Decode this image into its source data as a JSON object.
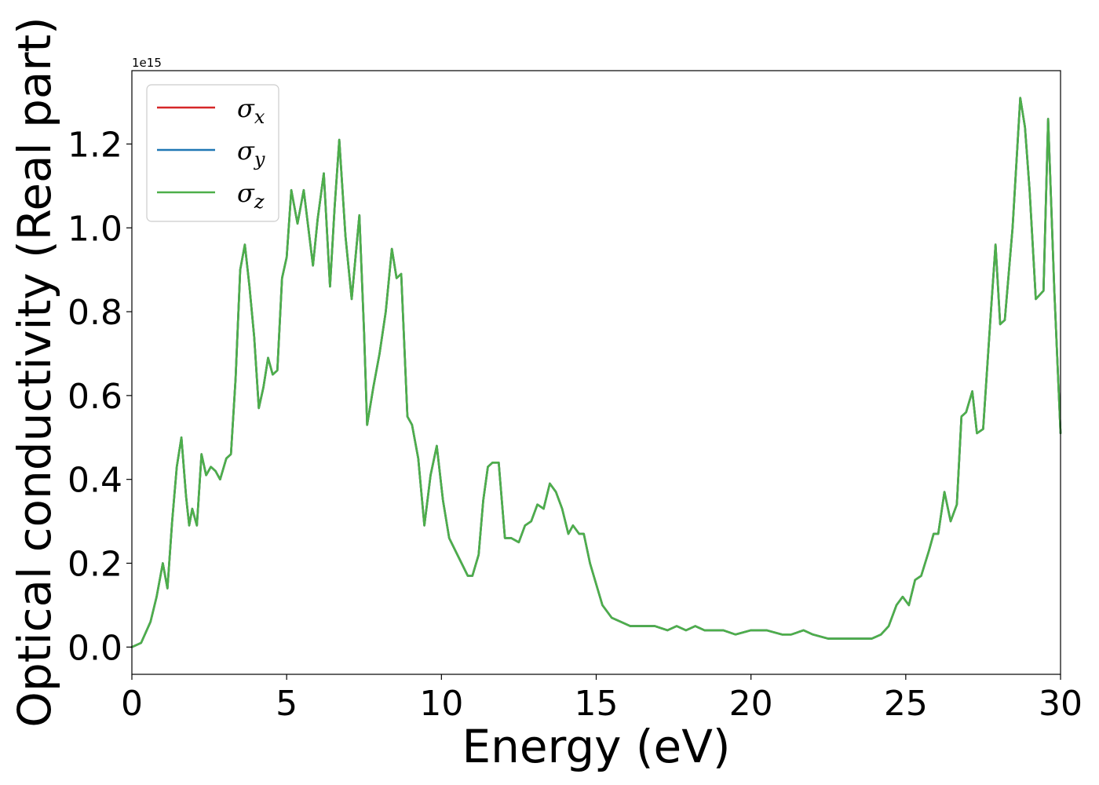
{
  "chart_data": {
    "type": "line",
    "xlabel": "Energy (eV)",
    "ylabel": "Optical conductivity (Real part)",
    "y_offset_label": "1e15",
    "xlim": [
      0,
      30
    ],
    "ylim": [
      -0.065,
      1.375
    ],
    "y_multiplier": 1000000000000000.0,
    "x_ticks": [
      0,
      5,
      10,
      15,
      20,
      25,
      30
    ],
    "x_tick_labels": [
      "0",
      "5",
      "10",
      "15",
      "20",
      "25",
      "30"
    ],
    "y_ticks": [
      0.0,
      0.2,
      0.4,
      0.6,
      0.8,
      1.0,
      1.2
    ],
    "y_tick_labels": [
      "0.0",
      "0.2",
      "0.4",
      "0.6",
      "0.8",
      "1.0",
      "1.2"
    ],
    "grid": false,
    "legend_position": "top-left",
    "series": [
      {
        "name": "σx",
        "symbol": "σ",
        "subscript": "x",
        "color": "#d62728"
      },
      {
        "name": "σy",
        "symbol": "σ",
        "subscript": "y",
        "color": "#1f77b4"
      },
      {
        "name": "σz",
        "symbol": "σ",
        "subscript": "z",
        "color": "#4daf4a"
      }
    ],
    "x": [
      0,
      0.3,
      0.6,
      0.8,
      1.0,
      1.15,
      1.3,
      1.45,
      1.6,
      1.75,
      1.85,
      1.95,
      2.1,
      2.25,
      2.4,
      2.55,
      2.7,
      2.85,
      3.05,
      3.2,
      3.35,
      3.5,
      3.65,
      3.8,
      3.95,
      4.1,
      4.25,
      4.4,
      4.55,
      4.7,
      4.85,
      5.0,
      5.15,
      5.35,
      5.55,
      5.7,
      5.85,
      6.0,
      6.2,
      6.4,
      6.55,
      6.7,
      6.9,
      7.1,
      7.35,
      7.5,
      7.6,
      7.8,
      8.0,
      8.2,
      8.4,
      8.55,
      8.7,
      8.9,
      9.05,
      9.25,
      9.45,
      9.65,
      9.85,
      10.05,
      10.25,
      10.45,
      10.65,
      10.85,
      11.0,
      11.2,
      11.35,
      11.5,
      11.65,
      11.85,
      12.05,
      12.25,
      12.5,
      12.7,
      12.9,
      13.1,
      13.3,
      13.5,
      13.7,
      13.9,
      14.1,
      14.25,
      14.45,
      14.6,
      14.8,
      15.0,
      15.2,
      15.5,
      15.8,
      16.1,
      16.5,
      16.9,
      17.3,
      17.6,
      17.9,
      18.2,
      18.5,
      18.8,
      19.1,
      19.5,
      20.0,
      20.5,
      21.0,
      21.3,
      21.7,
      22.0,
      22.5,
      23.0,
      23.5,
      23.9,
      24.2,
      24.45,
      24.7,
      24.9,
      25.1,
      25.3,
      25.5,
      25.75,
      25.9,
      26.05,
      26.25,
      26.45,
      26.65,
      26.8,
      26.95,
      27.15,
      27.3,
      27.5,
      27.75,
      27.9,
      28.05,
      28.2,
      28.45,
      28.7,
      28.85,
      29.0,
      29.2,
      29.45,
      29.6,
      29.8,
      30.0
    ],
    "y": [
      0.0,
      0.01,
      0.06,
      0.12,
      0.2,
      0.14,
      0.3,
      0.43,
      0.5,
      0.36,
      0.29,
      0.33,
      0.29,
      0.46,
      0.41,
      0.43,
      0.42,
      0.4,
      0.45,
      0.46,
      0.64,
      0.9,
      0.96,
      0.86,
      0.74,
      0.57,
      0.62,
      0.69,
      0.65,
      0.66,
      0.88,
      0.93,
      1.09,
      1.01,
      1.09,
      1.0,
      0.91,
      1.02,
      1.13,
      0.86,
      1.05,
      1.21,
      0.98,
      0.83,
      1.03,
      0.75,
      0.53,
      0.62,
      0.7,
      0.8,
      0.95,
      0.88,
      0.89,
      0.55,
      0.53,
      0.45,
      0.29,
      0.41,
      0.48,
      0.35,
      0.26,
      0.23,
      0.2,
      0.17,
      0.17,
      0.22,
      0.35,
      0.43,
      0.44,
      0.44,
      0.26,
      0.26,
      0.25,
      0.29,
      0.3,
      0.34,
      0.33,
      0.39,
      0.37,
      0.33,
      0.27,
      0.29,
      0.27,
      0.27,
      0.2,
      0.15,
      0.1,
      0.07,
      0.06,
      0.05,
      0.05,
      0.05,
      0.04,
      0.05,
      0.04,
      0.05,
      0.04,
      0.04,
      0.04,
      0.03,
      0.04,
      0.04,
      0.03,
      0.03,
      0.04,
      0.03,
      0.02,
      0.02,
      0.02,
      0.02,
      0.03,
      0.05,
      0.1,
      0.12,
      0.1,
      0.16,
      0.17,
      0.23,
      0.27,
      0.27,
      0.37,
      0.3,
      0.34,
      0.55,
      0.56,
      0.61,
      0.51,
      0.52,
      0.8,
      0.96,
      0.77,
      0.78,
      1.0,
      1.31,
      1.24,
      1.09,
      0.83,
      0.85,
      1.26,
      0.85,
      0.51
    ]
  }
}
